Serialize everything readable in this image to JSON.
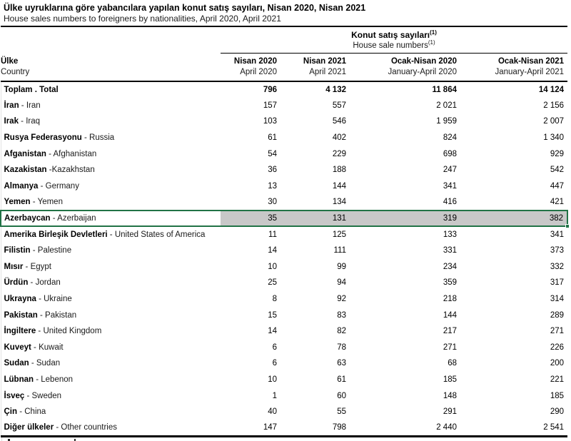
{
  "header": {
    "title_tr": "Ülke uyruklarına göre yabancılara yapılan konut satış sayıları, Nisan 2020, Nisan 2021",
    "title_en": "House sales numbers to foreigners by nationalities, April 2020, April 2021"
  },
  "table": {
    "group_header": {
      "tr": "Konut satış sayıları",
      "en": "House sale numbers",
      "footnote_marker": "(1)"
    },
    "row_header": {
      "tr": "Ülke",
      "en": "Country"
    },
    "columns": [
      {
        "tr": "Nisan 2020",
        "en": "April 2020"
      },
      {
        "tr": "Nisan 2021",
        "en": "April 2021"
      },
      {
        "tr": "Ocak-Nisan 2020",
        "en": "January-April 2020"
      },
      {
        "tr": "Ocak-Nisan 2021",
        "en": "January-April 2021"
      }
    ],
    "rows": [
      {
        "tr": "Toplam",
        "sep": " . ",
        "en": "Total",
        "values": [
          "796",
          "4 132",
          "11 864",
          "14 124"
        ],
        "bold": true
      },
      {
        "tr": "İran",
        "sep": " - ",
        "en": "Iran",
        "values": [
          "157",
          "557",
          "2 021",
          "2 156"
        ]
      },
      {
        "tr": "Irak",
        "sep": " - ",
        "en": "Iraq",
        "values": [
          "103",
          "546",
          "1 959",
          "2 007"
        ]
      },
      {
        "tr": "Rusya Federasyonu",
        "sep": " - ",
        "en": "Russia",
        "values": [
          "61",
          "402",
          "824",
          "1 340"
        ]
      },
      {
        "tr": "Afganistan",
        "sep": " - ",
        "en": "Afghanistan",
        "values": [
          "54",
          "229",
          "698",
          "929"
        ]
      },
      {
        "tr": "Kazakistan",
        "sep": " -",
        "en": "Kazakhstan",
        "values": [
          "36",
          "188",
          "247",
          "542"
        ]
      },
      {
        "tr": "Almanya",
        "sep": " - ",
        "en": "Germany",
        "values": [
          "13",
          "144",
          "341",
          "447"
        ]
      },
      {
        "tr": "Yemen",
        "sep": " - ",
        "en": "Yemen",
        "values": [
          "30",
          "134",
          "416",
          "421"
        ]
      },
      {
        "tr": "Azerbaycan",
        "sep": " - ",
        "en": "Azerbaijan",
        "values": [
          "35",
          "131",
          "319",
          "382"
        ],
        "selected": true
      },
      {
        "tr": "Amerika Birleşik Devletleri",
        "sep": " - ",
        "en": "United States of America",
        "values": [
          "11",
          "125",
          "133",
          "341"
        ]
      },
      {
        "tr": "Filistin",
        "sep": " - ",
        "en": "Palestine",
        "values": [
          "14",
          "111",
          "331",
          "373"
        ]
      },
      {
        "tr": "Mısır",
        "sep": " - ",
        "en": "Egypt",
        "values": [
          "10",
          "99",
          "234",
          "332"
        ]
      },
      {
        "tr": "Ürdün",
        "sep": " - ",
        "en": "Jordan",
        "values": [
          "25",
          "94",
          "359",
          "317"
        ]
      },
      {
        "tr": "Ukrayna",
        "sep": " - ",
        "en": "Ukraine",
        "values": [
          "8",
          "92",
          "218",
          "314"
        ]
      },
      {
        "tr": "Pakistan",
        "sep": " - ",
        "en": "Pakistan",
        "values": [
          "15",
          "83",
          "144",
          "289"
        ]
      },
      {
        "tr": "İngiltere",
        "sep": " - ",
        "en": "United Kingdom",
        "values": [
          "14",
          "82",
          "217",
          "271"
        ]
      },
      {
        "tr": "Kuveyt",
        "sep": " - ",
        "en": "Kuwait",
        "values": [
          "6",
          "78",
          "271",
          "226"
        ]
      },
      {
        "tr": "Sudan",
        "sep": " - ",
        "en": "Sudan",
        "values": [
          "6",
          "63",
          "68",
          "200"
        ]
      },
      {
        "tr": "Lübnan",
        "sep": " - ",
        "en": "Lebenon",
        "values": [
          "10",
          "61",
          "185",
          "221"
        ]
      },
      {
        "tr": "İsveç",
        "sep": " - ",
        "en": "Sweden",
        "values": [
          "1",
          "60",
          "148",
          "185"
        ]
      },
      {
        "tr": "Çin",
        "sep": " - ",
        "en": "China",
        "values": [
          "40",
          "55",
          "291",
          "290"
        ]
      },
      {
        "tr": "Diğer ülkeler",
        "sep": " - ",
        "en": "Other countries",
        "values": [
          "147",
          "798",
          "2 440",
          "2 541"
        ]
      }
    ]
  },
  "selection": {
    "selected_row": "Azerbaycan - Azerbaijan",
    "border_color": "#217346",
    "range_fill_color": "#c8c8c8",
    "active_cell_color": "#ffffff"
  }
}
